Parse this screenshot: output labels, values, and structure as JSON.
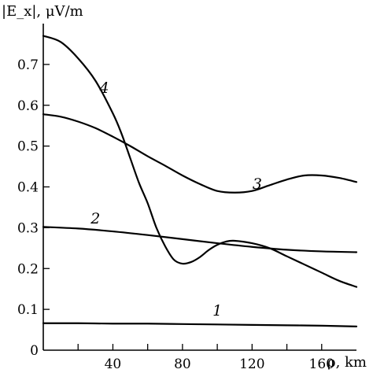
{
  "chart_data": {
    "type": "line",
    "ylabel": "|E_x|, μV/m",
    "xlabel": "ρ, km",
    "xlim": [
      0,
      180
    ],
    "ylim": [
      0,
      0.8
    ],
    "x_ticks": [
      20,
      40,
      60,
      80,
      100,
      120,
      140,
      160
    ],
    "x_tick_labels": [
      "40",
      "80",
      "120",
      "160"
    ],
    "x_tick_labels_at": [
      40,
      80,
      120,
      160
    ],
    "y_ticks": [
      0,
      0.1,
      0.2,
      0.3,
      0.4,
      0.5,
      0.6,
      0.7
    ],
    "y_tick_labels": [
      "0",
      "0.1",
      "0.2",
      "0.3",
      "0.4",
      "0.5",
      "0.6",
      "0.7"
    ],
    "grid": false,
    "series": [
      {
        "name": "1",
        "x": [
          0,
          20,
          40,
          60,
          80,
          100,
          120,
          140,
          160,
          180
        ],
        "y": [
          0.066,
          0.066,
          0.065,
          0.065,
          0.064,
          0.063,
          0.062,
          0.061,
          0.06,
          0.058
        ]
      },
      {
        "name": "2",
        "x": [
          0,
          20,
          40,
          60,
          80,
          100,
          120,
          140,
          160,
          180
        ],
        "y": [
          0.302,
          0.298,
          0.291,
          0.282,
          0.272,
          0.262,
          0.253,
          0.246,
          0.242,
          0.24
        ]
      },
      {
        "name": "3",
        "x": [
          0,
          10,
          20,
          30,
          40,
          50,
          60,
          70,
          80,
          90,
          100,
          110,
          120,
          130,
          140,
          150,
          160,
          170,
          180
        ],
        "y": [
          0.578,
          0.572,
          0.56,
          0.544,
          0.523,
          0.5,
          0.475,
          0.452,
          0.428,
          0.407,
          0.39,
          0.386,
          0.39,
          0.404,
          0.418,
          0.428,
          0.428,
          0.422,
          0.412
        ]
      },
      {
        "name": "4",
        "x": [
          0,
          10,
          20,
          30,
          40,
          45,
          50,
          55,
          60,
          65,
          70,
          75,
          80,
          85,
          90,
          95,
          100,
          105,
          110,
          120,
          130,
          140,
          150,
          160,
          170,
          180
        ],
        "y": [
          0.77,
          0.755,
          0.715,
          0.66,
          0.58,
          0.53,
          0.47,
          0.41,
          0.36,
          0.3,
          0.255,
          0.222,
          0.212,
          0.216,
          0.228,
          0.245,
          0.258,
          0.266,
          0.268,
          0.262,
          0.25,
          0.23,
          0.21,
          0.19,
          0.17,
          0.155
        ]
      }
    ],
    "curve_labels": [
      {
        "text": "1",
        "x": 100,
        "y": 0.085
      },
      {
        "text": "2",
        "x": 30,
        "y": 0.31
      },
      {
        "text": "3",
        "x": 123,
        "y": 0.395
      },
      {
        "text": "4",
        "x": 35,
        "y": 0.63
      }
    ]
  }
}
